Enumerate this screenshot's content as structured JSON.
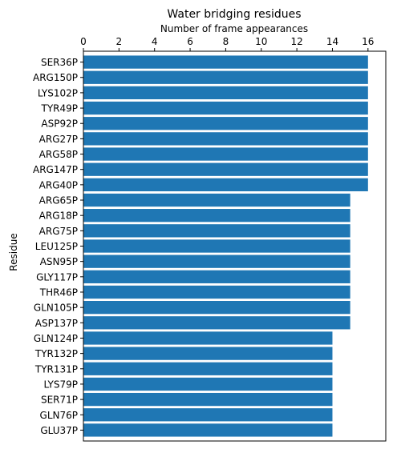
{
  "chart_data": {
    "type": "bar",
    "orientation": "horizontal",
    "title": "Water bridging residues",
    "xlabel": "Number of frame appearances",
    "ylabel": "Residue",
    "xaxis_position": "top",
    "xlim": [
      0,
      17
    ],
    "xticks": [
      0,
      2,
      4,
      6,
      8,
      10,
      12,
      14,
      16
    ],
    "grid": false,
    "bar_color": "#1f77b4",
    "categories": [
      "SER36P",
      "ARG150P",
      "LYS102P",
      "TYR49P",
      "ASP92P",
      "ARG27P",
      "ARG58P",
      "ARG147P",
      "ARG40P",
      "ARG65P",
      "ARG18P",
      "ARG75P",
      "LEU125P",
      "ASN95P",
      "GLY117P",
      "THR46P",
      "GLN105P",
      "ASP137P",
      "GLN124P",
      "TYR132P",
      "TYR131P",
      "LYS79P",
      "SER71P",
      "GLN76P",
      "GLU37P"
    ],
    "values": [
      16,
      16,
      16,
      16,
      16,
      16,
      16,
      16,
      16,
      15,
      15,
      15,
      15,
      15,
      15,
      15,
      15,
      15,
      14,
      14,
      14,
      14,
      14,
      14,
      14
    ]
  }
}
